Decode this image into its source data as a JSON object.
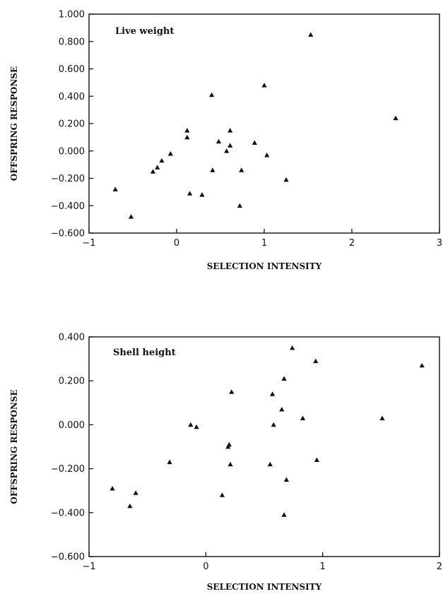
{
  "chart_data": [
    {
      "type": "scatter",
      "annotation": "Live weight",
      "xlabel": "SELECTION INTENSITY",
      "ylabel": "OFFSPRING RESPONSE",
      "xlim": [
        -1,
        3
      ],
      "ylim": [
        -0.6,
        1.0
      ],
      "x_ticks": [
        -1,
        0,
        1,
        2,
        3
      ],
      "x_tick_labels": [
        "−1",
        "0",
        "1",
        "2",
        "3"
      ],
      "y_ticks": [
        -0.6,
        -0.4,
        -0.2,
        0.0,
        0.2,
        0.4,
        0.6,
        0.8,
        1.0
      ],
      "y_tick_labels": [
        "−0.600",
        "−0.400",
        "−0.200",
        "0.000",
        "0.200",
        "0.400",
        "0.600",
        "0.800",
        "1.000"
      ],
      "marker": "triangle",
      "points": [
        {
          "x": -0.7,
          "y": -0.28
        },
        {
          "x": -0.52,
          "y": -0.48
        },
        {
          "x": -0.27,
          "y": -0.15
        },
        {
          "x": -0.22,
          "y": -0.12
        },
        {
          "x": -0.17,
          "y": -0.07
        },
        {
          "x": -0.07,
          "y": -0.02
        },
        {
          "x": 0.12,
          "y": 0.15
        },
        {
          "x": 0.12,
          "y": 0.1
        },
        {
          "x": 0.15,
          "y": -0.31
        },
        {
          "x": 0.29,
          "y": -0.32
        },
        {
          "x": 0.4,
          "y": 0.41
        },
        {
          "x": 0.41,
          "y": -0.14
        },
        {
          "x": 0.48,
          "y": 0.07
        },
        {
          "x": 0.57,
          "y": 0.0
        },
        {
          "x": 0.61,
          "y": 0.15
        },
        {
          "x": 0.61,
          "y": 0.04
        },
        {
          "x": 0.72,
          "y": -0.4
        },
        {
          "x": 0.74,
          "y": -0.14
        },
        {
          "x": 0.89,
          "y": 0.06
        },
        {
          "x": 1.0,
          "y": 0.48
        },
        {
          "x": 1.03,
          "y": -0.03
        },
        {
          "x": 1.25,
          "y": -0.21
        },
        {
          "x": 1.53,
          "y": 0.85
        },
        {
          "x": 2.5,
          "y": 0.24
        }
      ]
    },
    {
      "type": "scatter",
      "annotation": "Shell height",
      "xlabel": "SELECTION INTENSITY",
      "ylabel": "OFFSPRING RESPONSE",
      "xlim": [
        -1,
        2
      ],
      "ylim": [
        -0.6,
        0.4
      ],
      "x_ticks": [
        -1,
        0,
        1,
        2
      ],
      "x_tick_labels": [
        "−1",
        "0",
        "1",
        "2"
      ],
      "y_ticks": [
        -0.6,
        -0.4,
        -0.2,
        0.0,
        0.2,
        0.4
      ],
      "y_tick_labels": [
        "−0.600",
        "−0.400",
        "−0.200",
        "0.000",
        "0.200",
        "0.400"
      ],
      "marker": "triangle",
      "points": [
        {
          "x": -0.8,
          "y": -0.29
        },
        {
          "x": -0.65,
          "y": -0.37
        },
        {
          "x": -0.6,
          "y": -0.31
        },
        {
          "x": -0.31,
          "y": -0.17
        },
        {
          "x": -0.13,
          "y": 0.0
        },
        {
          "x": -0.08,
          "y": -0.01
        },
        {
          "x": 0.14,
          "y": -0.32
        },
        {
          "x": 0.19,
          "y": -0.1
        },
        {
          "x": 0.2,
          "y": -0.09
        },
        {
          "x": 0.21,
          "y": -0.18
        },
        {
          "x": 0.22,
          "y": 0.15
        },
        {
          "x": 0.55,
          "y": -0.18
        },
        {
          "x": 0.57,
          "y": 0.14
        },
        {
          "x": 0.58,
          "y": 0.0
        },
        {
          "x": 0.65,
          "y": 0.07
        },
        {
          "x": 0.67,
          "y": 0.21
        },
        {
          "x": 0.67,
          "y": -0.41
        },
        {
          "x": 0.69,
          "y": -0.25
        },
        {
          "x": 0.74,
          "y": 0.35
        },
        {
          "x": 0.83,
          "y": 0.03
        },
        {
          "x": 0.94,
          "y": 0.29
        },
        {
          "x": 0.95,
          "y": -0.16
        },
        {
          "x": 1.51,
          "y": 0.03
        },
        {
          "x": 1.85,
          "y": 0.27
        }
      ]
    }
  ]
}
